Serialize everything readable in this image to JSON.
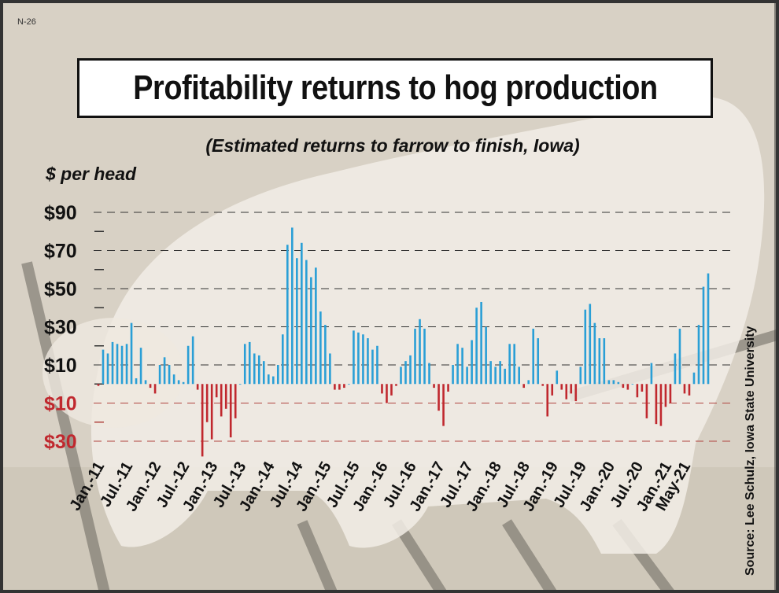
{
  "code": "N-26",
  "source": "Source: Lee Schulz, Iowa State University",
  "colors": {
    "positive": "#2a9fd6",
    "negative": "#c0282e",
    "grid_pos": "#333333",
    "grid_neg": "#b0443f"
  },
  "chart_data": {
    "type": "bar",
    "title": "Profitability returns to hog production",
    "subtitle": "(Estimated returns to farrow to finish, Iowa)",
    "ylabel": "$ per head",
    "ylim": [
      -30,
      95
    ],
    "y_ticks": [
      {
        "value": 90,
        "label": "$90"
      },
      {
        "value": 70,
        "label": "$70"
      },
      {
        "value": 50,
        "label": "$50"
      },
      {
        "value": 30,
        "label": "$30"
      },
      {
        "value": 10,
        "label": "$10"
      },
      {
        "value": -10,
        "label": "$10"
      },
      {
        "value": -30,
        "label": "$30"
      }
    ],
    "x_ticks": [
      {
        "index": 0,
        "label": "Jan.-11"
      },
      {
        "index": 6,
        "label": "Jul.-11"
      },
      {
        "index": 12,
        "label": "Jan.-12"
      },
      {
        "index": 18,
        "label": "Jul.-12"
      },
      {
        "index": 24,
        "label": "Jan.-13"
      },
      {
        "index": 30,
        "label": "Jul.-13"
      },
      {
        "index": 36,
        "label": "Jan.-14"
      },
      {
        "index": 42,
        "label": "Jul.-14"
      },
      {
        "index": 48,
        "label": "Jan.-15"
      },
      {
        "index": 54,
        "label": "Jul.-15"
      },
      {
        "index": 60,
        "label": "Jan.-16"
      },
      {
        "index": 66,
        "label": "Jul.-16"
      },
      {
        "index": 72,
        "label": "Jan.-17"
      },
      {
        "index": 78,
        "label": "Jul.-17"
      },
      {
        "index": 84,
        "label": "Jan.-18"
      },
      {
        "index": 90,
        "label": "Jul.-18"
      },
      {
        "index": 96,
        "label": "Jan.-19"
      },
      {
        "index": 102,
        "label": "Jul.-19"
      },
      {
        "index": 108,
        "label": "Jan.-20"
      },
      {
        "index": 114,
        "label": "Jul.-20"
      },
      {
        "index": 120,
        "label": "Jan.-21"
      },
      {
        "index": 124,
        "label": "May-21"
      }
    ],
    "values": [
      -1,
      18,
      16,
      22,
      21,
      20,
      21,
      32,
      3,
      19,
      2,
      -2,
      -5,
      10,
      14,
      10,
      5,
      2,
      1,
      20,
      25,
      -3,
      -38,
      -20,
      -29,
      -7,
      -17,
      -13,
      -28,
      -18,
      0,
      21,
      22,
      16,
      15,
      12,
      5,
      4,
      10,
      26,
      73,
      82,
      66,
      74,
      65,
      56,
      61,
      38,
      31,
      16,
      -3,
      -3,
      -2,
      0,
      28,
      27,
      26,
      24,
      18,
      20,
      -5,
      -10,
      -6,
      -1,
      9,
      12,
      15,
      29,
      34,
      29,
      11,
      -2,
      -14,
      -22,
      -4,
      10,
      21,
      19,
      9,
      23,
      40,
      43,
      30,
      12,
      9,
      12,
      8,
      21,
      21,
      9,
      -2,
      2,
      29,
      24,
      -1,
      -17,
      -6,
      7,
      -3,
      -8,
      -5,
      -9,
      9,
      39,
      42,
      32,
      24,
      24,
      2,
      2,
      1,
      -2,
      -3,
      0,
      -7,
      -4,
      -18,
      11,
      -21,
      -22,
      -12,
      -10,
      16,
      29,
      -5,
      -6,
      6,
      31,
      51,
      58
    ]
  }
}
